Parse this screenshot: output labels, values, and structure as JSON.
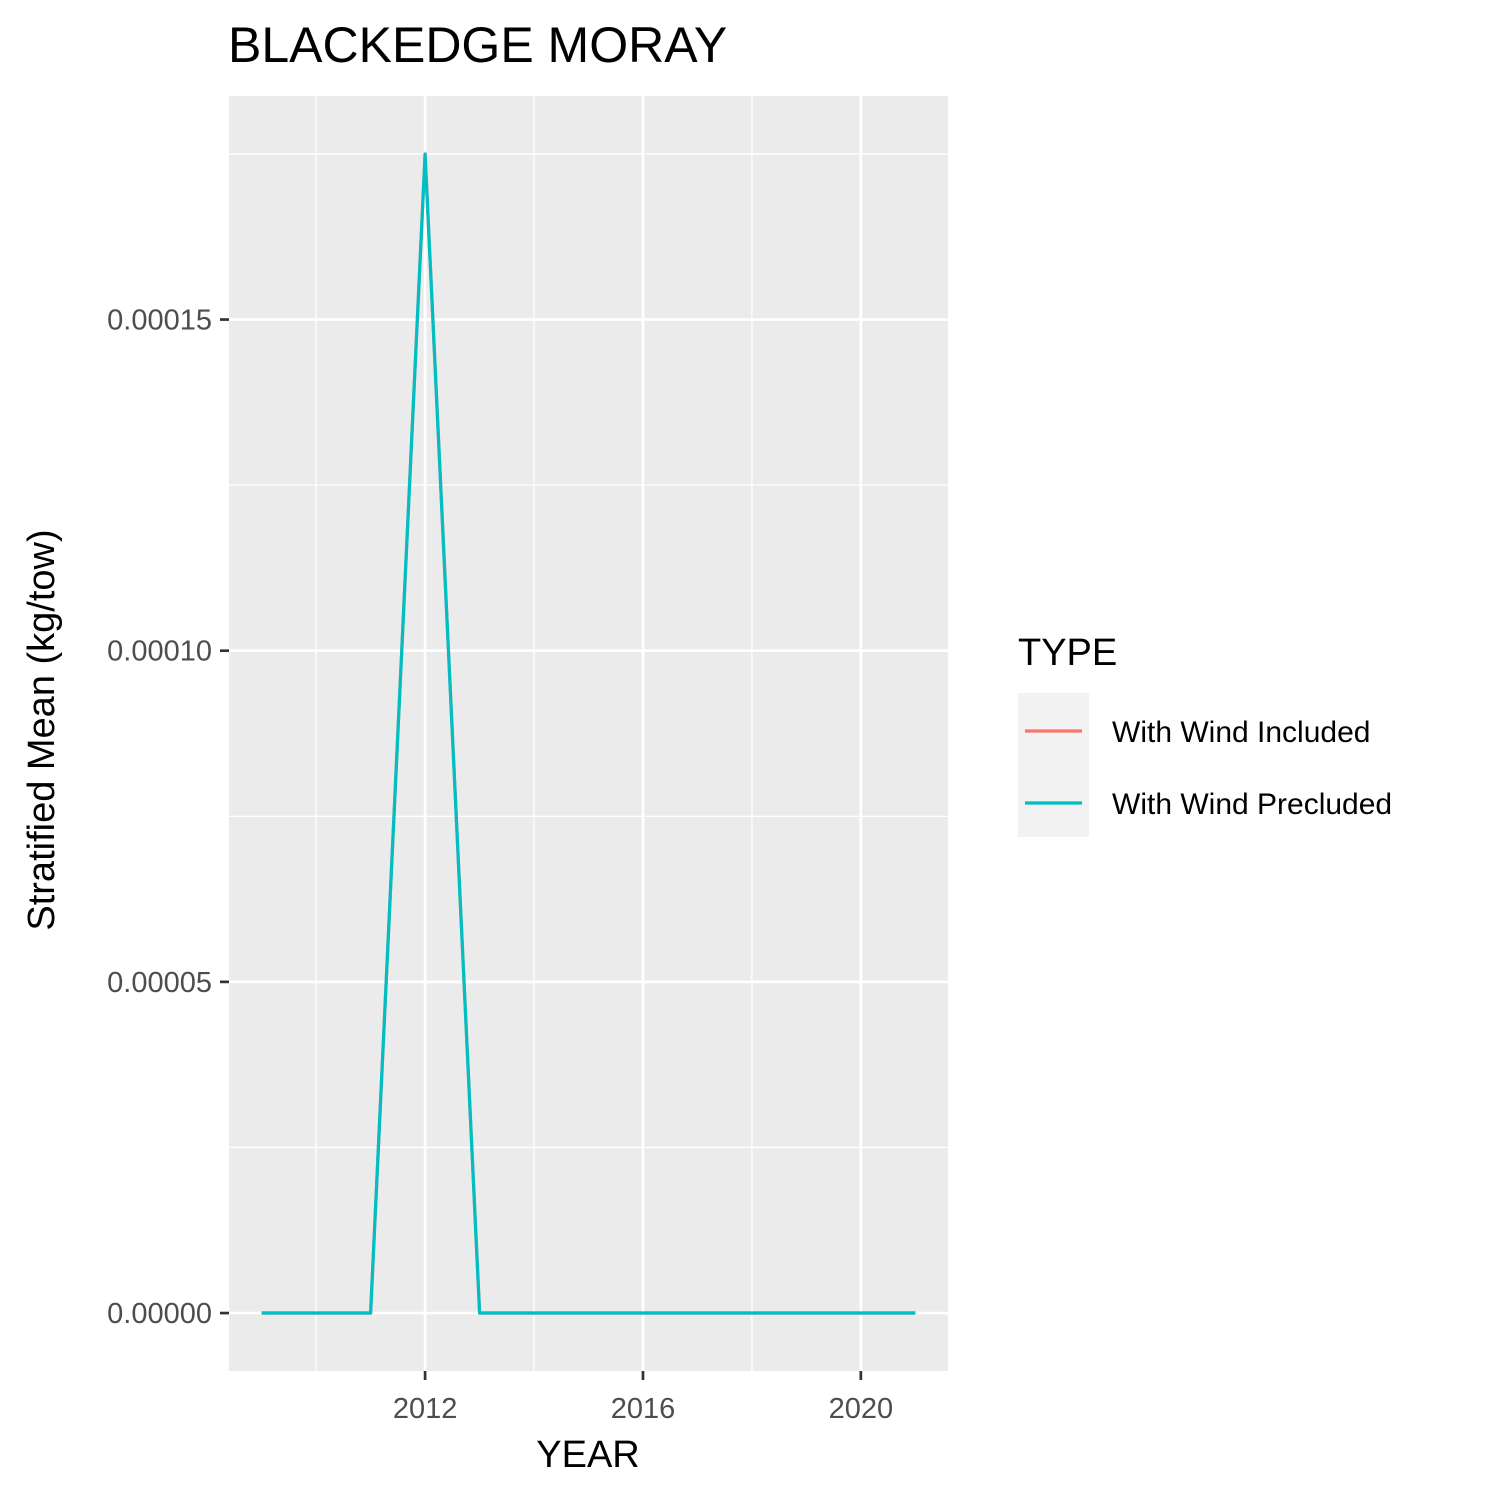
{
  "chart_data": {
    "type": "line",
    "title": "BLACKEDGE MORAY",
    "xlabel": "YEAR",
    "ylabel": "Stratified Mean (kg/tow)",
    "x": [
      2009,
      2010,
      2011,
      2012,
      2013,
      2014,
      2015,
      2016,
      2017,
      2018,
      2019,
      2020,
      2021
    ],
    "series": [
      {
        "name": "With Wind Included",
        "color": "#F8766D",
        "values": [
          0,
          0,
          0,
          0.000175,
          0,
          0,
          0,
          0,
          0,
          0,
          0,
          0,
          0
        ]
      },
      {
        "name": "With Wind Precluded",
        "color": "#00BFC4",
        "values": [
          0,
          0,
          0,
          0.000175,
          0,
          0,
          0,
          0,
          0,
          0,
          0,
          0,
          0
        ]
      }
    ],
    "xlim": [
      2008.4,
      2021.6
    ],
    "ylim": [
      -8.75e-06,
      0.00018375
    ],
    "x_ticks": [
      2012,
      2016,
      2020
    ],
    "x_tick_labels": [
      "2012",
      "2016",
      "2020"
    ],
    "x_minor_ticks": [
      2010,
      2014,
      2018
    ],
    "y_ticks": [
      0,
      5e-05,
      0.0001,
      0.00015
    ],
    "y_tick_labels": [
      "0.00000",
      "0.00005",
      "0.00010",
      "0.00015"
    ],
    "y_minor_ticks": [
      2.5e-05,
      7.5e-05,
      0.000125,
      0.000175
    ],
    "grid": true,
    "legend": {
      "title": "TYPE",
      "position": "right"
    },
    "panel_background": "#EBEBEB",
    "grid_color": "#FFFFFF"
  }
}
